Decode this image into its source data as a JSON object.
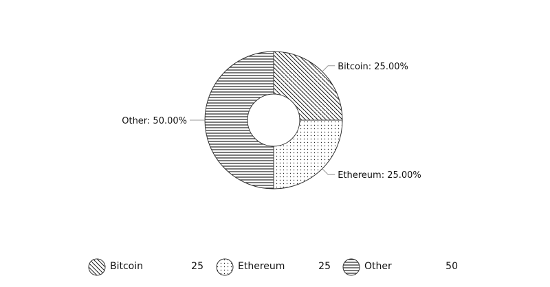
{
  "chart_data": {
    "type": "pie",
    "variant": "donut",
    "title": "",
    "slices": [
      {
        "name": "Bitcoin",
        "value": 25,
        "label": "Bitcoin: 25.00%",
        "pattern": "diagonal-hatch"
      },
      {
        "name": "Ethereum",
        "value": 25,
        "label": "Ethereum: 25.00%",
        "pattern": "dots"
      },
      {
        "name": "Other",
        "value": 50,
        "label": "Other: 50.00%",
        "pattern": "horizontal-lines"
      }
    ],
    "legend": {
      "placement": "bottom",
      "items": [
        {
          "name": "Bitcoin",
          "value": "25",
          "pattern": "diagonal-hatch"
        },
        {
          "name": "Ethereum",
          "value": "25",
          "pattern": "dots"
        },
        {
          "name": "Other",
          "value": "50",
          "pattern": "horizontal-lines"
        }
      ]
    }
  },
  "colors": {
    "stroke": "#333333",
    "pattern_ink": "#222222",
    "background": "#ffffff",
    "leader_line": "#999999"
  }
}
